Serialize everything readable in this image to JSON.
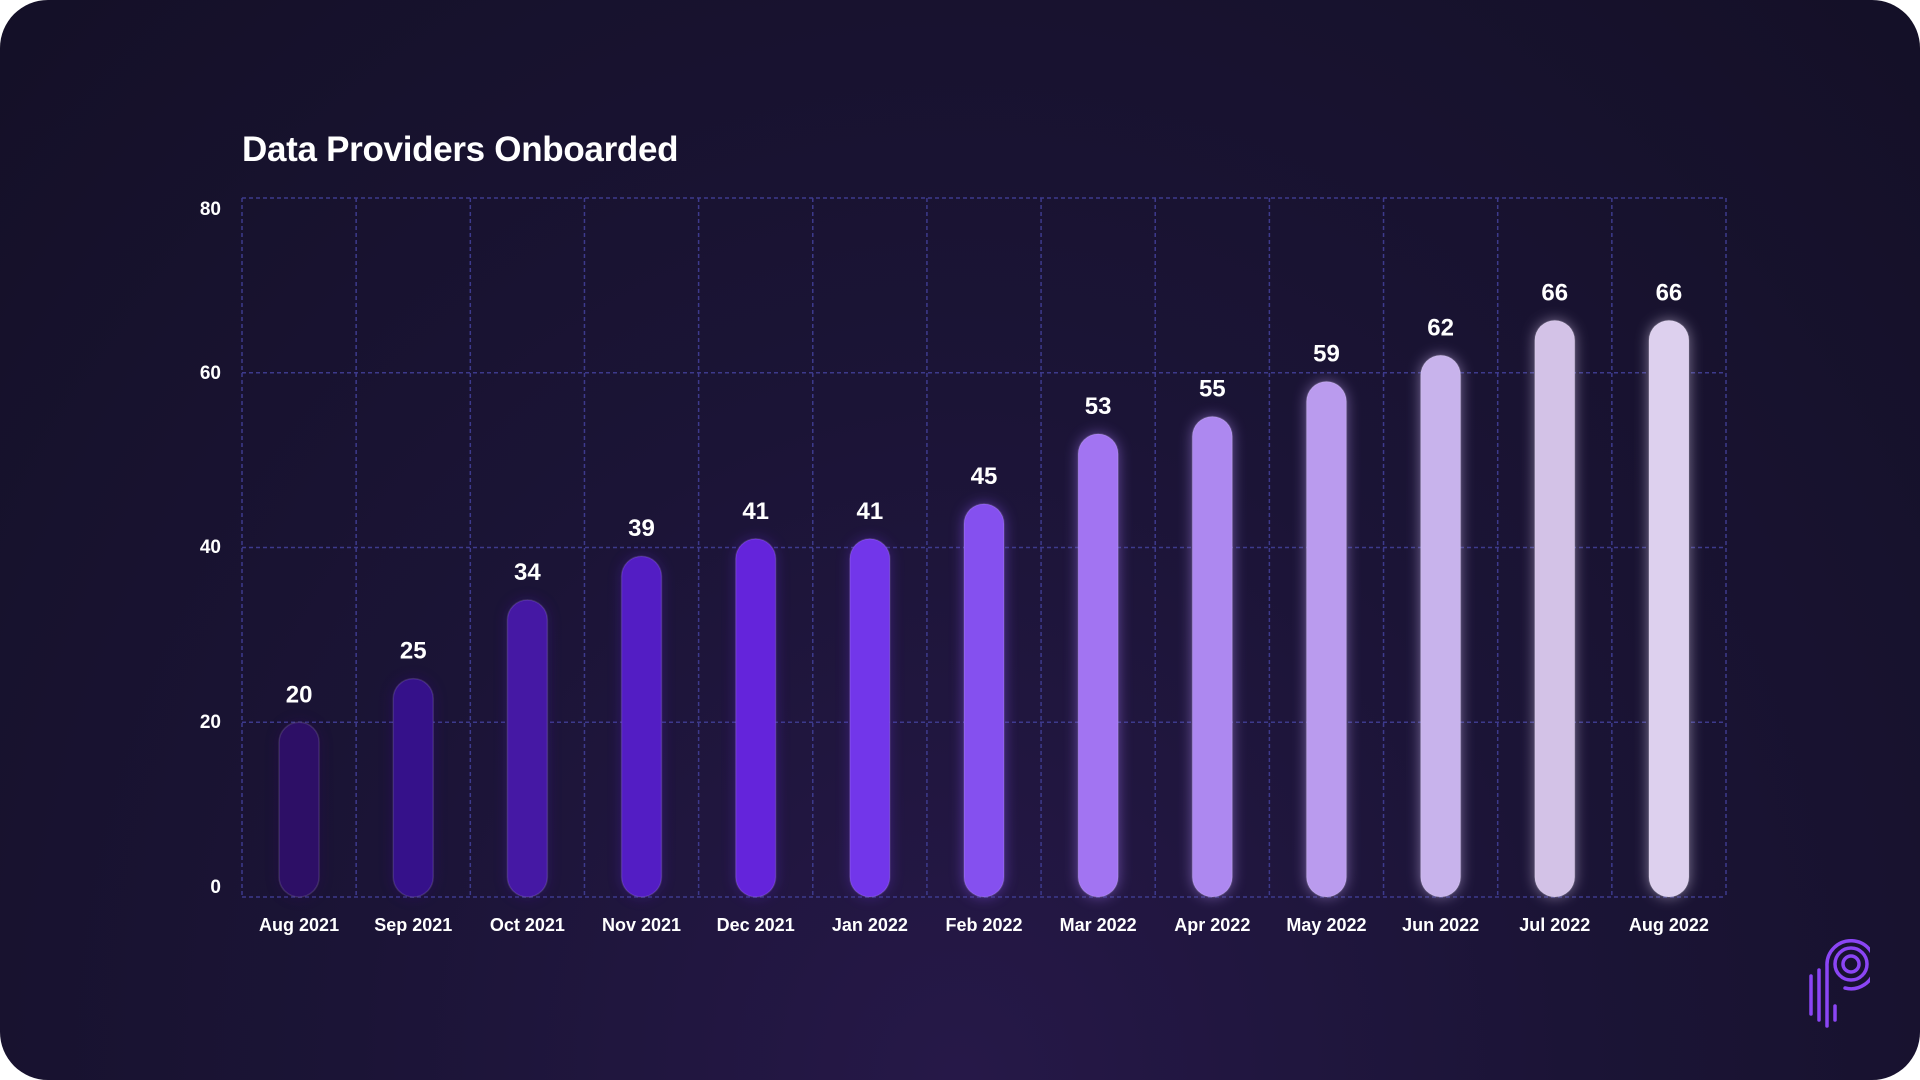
{
  "chart_data": {
    "type": "bar",
    "title": "Data Providers Onboarded",
    "xlabel": "",
    "ylabel": "",
    "ylim": [
      0,
      80
    ],
    "yticks": [
      0,
      20,
      40,
      60,
      80
    ],
    "grid": true,
    "categories": [
      "Aug 2021",
      "Sep 2021",
      "Oct 2021",
      "Nov 2021",
      "Dec 2021",
      "Jan 2022",
      "Feb 2022",
      "Mar 2022",
      "Apr 2022",
      "May 2022",
      "Jun 2022",
      "Jul 2022",
      "Aug 2022"
    ],
    "values": [
      20,
      25,
      34,
      39,
      41,
      41,
      45,
      53,
      55,
      59,
      62,
      66,
      66
    ],
    "bar_colors": [
      "#2d0f66",
      "#35118a",
      "#4518a4",
      "#531dc4",
      "#6424db",
      "#7236ea",
      "#8550ef",
      "#a274f2",
      "#ad88f0",
      "#ba9bee",
      "#c8b3ec",
      "#d3c2e7",
      "#ddd0ee"
    ],
    "colors": {
      "grid": "#3d3a8c",
      "text": "#ffffff"
    }
  },
  "logo": {
    "name": "logo-icon",
    "color": "#8b45f5"
  }
}
